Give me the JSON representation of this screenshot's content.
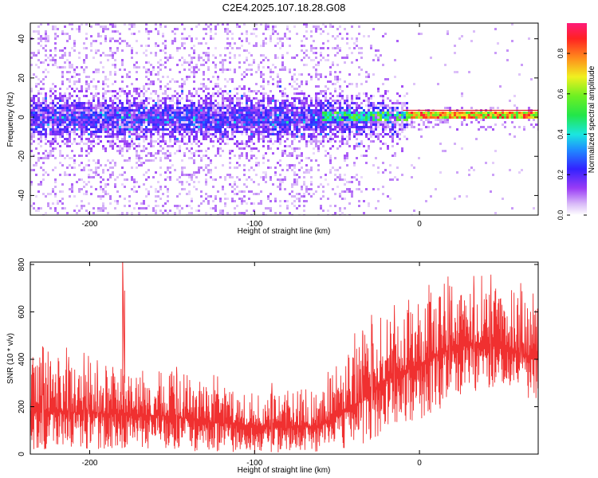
{
  "title": "C2E4.2025.107.18.28.G08",
  "colors": {
    "snr_line": "#f03030",
    "frame": "#000000",
    "red_line": "#e01010"
  },
  "chart_data": [
    {
      "type": "heatmap",
      "title": "C2E4.2025.107.18.28.G08",
      "xlabel": "Height of straight line (km)",
      "ylabel": "Frequency (Hz)",
      "xlim": [
        -236,
        72
      ],
      "ylim": [
        -50,
        48
      ],
      "x_ticks": [
        -200,
        -100,
        0
      ],
      "y_ticks": [
        -40,
        -20,
        0,
        20,
        40
      ],
      "colorbar": {
        "label": "Normalized spectral amplitude",
        "range": [
          0,
          0.95
        ],
        "ticks": [
          0.0,
          0.2,
          0.4,
          0.6,
          0.8
        ],
        "colormap": "rainbow (white-purple-blue-cyan-green-yellow-red-magenta)"
      },
      "features": {
        "noise_band_center_hz": 0,
        "noise_band_halfwidth_hz": 10,
        "tone_frequency_hz": 1.5,
        "tone_start_km": -8,
        "red_line_frequency_hz": 3.5,
        "red_line_start_km": -10
      },
      "grid": false
    },
    {
      "type": "line",
      "xlabel": "Height of straight line (km)",
      "ylabel": "SNR (10 * v/v)",
      "xlim": [
        -236,
        72
      ],
      "ylim": [
        0,
        810
      ],
      "x_ticks": [
        -200,
        -100,
        0
      ],
      "y_ticks": [
        0,
        200,
        400,
        600,
        800
      ],
      "series": [
        {
          "color": "#f03030",
          "envelope_km": [
            -236,
            -200,
            -180,
            -150,
            -120,
            -100,
            -80,
            -60,
            -40,
            -20,
            0,
            20,
            40,
            60,
            72
          ],
          "mean": [
            180,
            175,
            170,
            160,
            130,
            120,
            110,
            120,
            200,
            320,
            380,
            450,
            470,
            430,
            400
          ],
          "upper": [
            420,
            390,
            380,
            360,
            280,
            260,
            260,
            300,
            480,
            600,
            650,
            700,
            720,
            690,
            650
          ],
          "lower": [
            20,
            20,
            20,
            15,
            10,
            5,
            5,
            10,
            30,
            80,
            140,
            220,
            280,
            250,
            220
          ]
        }
      ],
      "annotations": [
        {
          "label": "spike",
          "x_km": -180,
          "y": 810
        }
      ],
      "grid": false
    }
  ]
}
